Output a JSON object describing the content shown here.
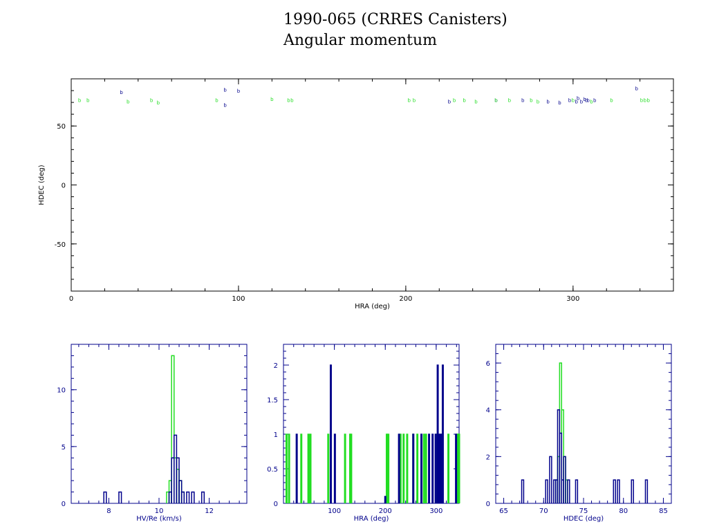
{
  "header": {
    "title": "1990-065 (CRRES Canisters)",
    "subtitle": "Angular momentum"
  },
  "colors": {
    "series_a": "#00008b",
    "series_b": "#22dd22",
    "axis_main": "#000000",
    "axis_hist": "#00008b"
  },
  "chart_data": [
    {
      "type": "scatter",
      "title": "",
      "xlabel": "HRA (deg)",
      "ylabel": "HDEC (deg)",
      "xlim": [
        0,
        360
      ],
      "ylim": [
        -90,
        90
      ],
      "xticks": [
        "0",
        "100",
        "200",
        "300"
      ],
      "yticks": [
        "50",
        "0",
        "-50"
      ],
      "xtick_values": [
        0,
        100,
        200,
        300
      ],
      "ytick_values": [
        50,
        0,
        -50
      ],
      "grid": false,
      "series": [
        {
          "color": "#00008b",
          "marker": "b",
          "x": [
            30,
            92,
            92,
            100,
            226,
            254,
            270,
            285,
            292,
            298,
            302,
            303,
            305,
            307,
            308,
            309,
            313,
            338
          ],
          "y": [
            79,
            81,
            68,
            80,
            71,
            72,
            72,
            71,
            70,
            72,
            71,
            74,
            71,
            73,
            72,
            72,
            72,
            82
          ]
        },
        {
          "color": "#22dd22",
          "marker": "b",
          "x": [
            5,
            10,
            34,
            48,
            52,
            87,
            120,
            130,
            132,
            202,
            205,
            229,
            235,
            242,
            254,
            262,
            275,
            279,
            300,
            311,
            323,
            341,
            343,
            345
          ],
          "y": [
            72,
            72,
            71,
            72,
            70,
            72,
            73,
            72,
            72,
            72,
            72,
            72,
            72,
            71,
            72,
            72,
            72,
            71,
            72,
            71,
            72,
            72,
            72,
            72
          ]
        }
      ]
    },
    {
      "type": "histogram",
      "title": "",
      "xlabel": "HV/Re (km/s)",
      "ylabel": "",
      "xlim": [
        6.5,
        13.5
      ],
      "ylim": [
        0,
        14
      ],
      "xticks": [
        "8",
        "10",
        "12"
      ],
      "yticks": [
        "0",
        "5",
        "10"
      ],
      "xtick_values": [
        8,
        10,
        12
      ],
      "ytick_values": [
        0,
        5,
        10
      ],
      "series": [
        {
          "color": "#22dd22",
          "bin_width": 0.1,
          "bins": [
            [
              10.3,
              1
            ],
            [
              10.4,
              2
            ],
            [
              10.5,
              13
            ],
            [
              10.6,
              4
            ],
            [
              10.7,
              3
            ],
            [
              10.8,
              2
            ],
            [
              10.9,
              1
            ]
          ]
        },
        {
          "color": "#00008b",
          "bin_width": 0.1,
          "bins": [
            [
              7.8,
              1
            ],
            [
              8.4,
              1
            ],
            [
              10.4,
              1
            ],
            [
              10.5,
              4
            ],
            [
              10.6,
              6
            ],
            [
              10.7,
              4
            ],
            [
              10.8,
              2
            ],
            [
              10.9,
              1
            ],
            [
              11.1,
              1
            ],
            [
              11.3,
              1
            ],
            [
              11.7,
              1
            ]
          ]
        }
      ]
    },
    {
      "type": "histogram",
      "title": "",
      "xlabel": "HRA (deg)",
      "ylabel": "",
      "xlim": [
        0,
        345
      ],
      "ylim": [
        0,
        2.3
      ],
      "xticks": [
        "100",
        "200",
        "300"
      ],
      "yticks": [
        "0",
        "0.5",
        "1",
        "1.5",
        "2"
      ],
      "xtick_values": [
        100,
        200,
        300
      ],
      "ytick_values": [
        0,
        0.5,
        1,
        1.5,
        2
      ],
      "series": [
        {
          "color": "#22dd22",
          "bin_width": 2,
          "bins": [
            [
              5,
              1
            ],
            [
              10,
              1
            ],
            [
              34,
              1
            ],
            [
              48,
              1
            ],
            [
              52,
              1
            ],
            [
              87,
              1
            ],
            [
              120,
              1
            ],
            [
              130,
              1
            ],
            [
              132,
              1
            ],
            [
              202,
              1
            ],
            [
              205,
              1
            ],
            [
              229,
              1
            ],
            [
              235,
              1
            ],
            [
              242,
              1
            ],
            [
              254,
              1
            ],
            [
              262,
              1
            ],
            [
              275,
              1
            ],
            [
              279,
              1
            ],
            [
              300,
              1
            ],
            [
              311,
              1
            ],
            [
              323,
              1
            ],
            [
              340,
              1
            ],
            [
              342,
              1
            ],
            [
              343,
              1
            ],
            [
              344,
              1
            ]
          ]
        },
        {
          "color": "#00008b",
          "bin_width": 2,
          "bins": [
            [
              25,
              1
            ],
            [
              92,
              2
            ],
            [
              100,
              1
            ],
            [
              199,
              0.1
            ],
            [
              226,
              1
            ],
            [
              254,
              1
            ],
            [
              270,
              1
            ],
            [
              285,
              1
            ],
            [
              292,
              1
            ],
            [
              298,
              1
            ],
            [
              302,
              2
            ],
            [
              305,
              1
            ],
            [
              308,
              1
            ],
            [
              312,
              2
            ],
            [
              338,
              1
            ]
          ]
        }
      ]
    },
    {
      "type": "histogram",
      "title": "",
      "xlabel": "HDEC (deg)",
      "ylabel": "",
      "xlim": [
        64,
        86
      ],
      "ylim": [
        0,
        6.8
      ],
      "xticks": [
        "65",
        "70",
        "75",
        "80",
        "85"
      ],
      "yticks": [
        "0",
        "2",
        "4",
        "6"
      ],
      "xtick_values": [
        65,
        70,
        75,
        80,
        85
      ],
      "ytick_values": [
        0,
        2,
        4,
        6
      ],
      "series": [
        {
          "color": "#22dd22",
          "bin_width": 0.25,
          "bins": [
            [
              71.5,
              1
            ],
            [
              71.75,
              2
            ],
            [
              72.0,
              6
            ],
            [
              72.25,
              4
            ],
            [
              72.5,
              2
            ],
            [
              72.75,
              1
            ]
          ]
        },
        {
          "color": "#00008b",
          "bin_width": 0.25,
          "bins": [
            [
              67.25,
              1
            ],
            [
              70.25,
              1
            ],
            [
              70.75,
              2
            ],
            [
              71.25,
              1
            ],
            [
              71.5,
              1
            ],
            [
              71.75,
              4
            ],
            [
              72.0,
              3
            ],
            [
              72.25,
              1
            ],
            [
              72.5,
              2
            ],
            [
              73.0,
              1
            ],
            [
              74.0,
              1
            ],
            [
              78.75,
              1
            ],
            [
              79.25,
              1
            ],
            [
              81.0,
              1
            ],
            [
              82.75,
              1
            ]
          ]
        }
      ]
    }
  ]
}
